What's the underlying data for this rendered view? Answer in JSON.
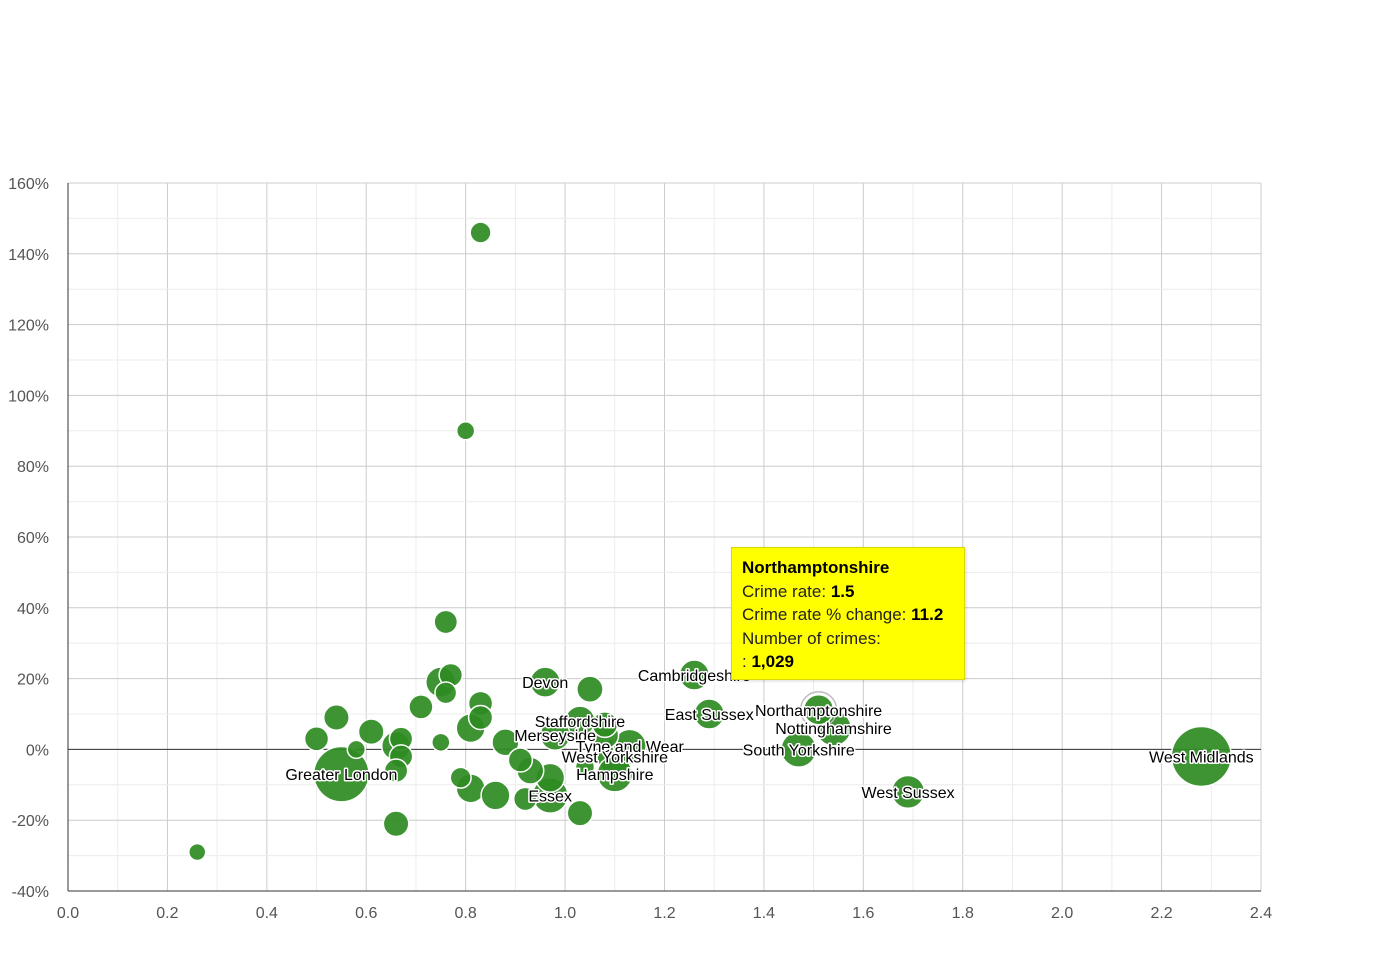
{
  "chart_data": {
    "type": "scatter",
    "subtype": "bubble",
    "title": "",
    "xlabel": "",
    "ylabel": "",
    "xlim": [
      0,
      2.4
    ],
    "ylim": [
      -40,
      160
    ],
    "x_ticks": [
      "0.0",
      "0.2",
      "0.4",
      "0.6",
      "0.8",
      "1.0",
      "1.2",
      "1.4",
      "1.6",
      "1.8",
      "2.0",
      "2.2",
      "2.4"
    ],
    "y_ticks": [
      "-40%",
      "-20%",
      "0%",
      "20%",
      "40%",
      "60%",
      "80%",
      "100%",
      "120%",
      "140%",
      "160%"
    ],
    "bubble_color": "#2e8b22",
    "points": [
      {
        "name": "West Midlands",
        "x": 2.28,
        "y": -2,
        "size": 10,
        "labeled": true
      },
      {
        "name": "Greater London",
        "x": 0.55,
        "y": -7,
        "size": 8.5,
        "labeled": true
      },
      {
        "name": "West Sussex",
        "x": 1.69,
        "y": -12,
        "size": 3,
        "labeled": true
      },
      {
        "name": "South Yorkshire",
        "x": 1.47,
        "y": 0,
        "size": 3.5,
        "labeled": true
      },
      {
        "name": "Nottinghamshire",
        "x": 1.54,
        "y": 6,
        "size": 3.5,
        "labeled": true
      },
      {
        "name": "Northamptonshire",
        "x": 1.51,
        "y": 11.2,
        "size": 2.5,
        "labeled": true,
        "highlighted": true
      },
      {
        "name": "East Sussex",
        "x": 1.29,
        "y": 10,
        "size": 2.5,
        "labeled": true
      },
      {
        "name": "Cambridgeshire",
        "x": 1.26,
        "y": 21,
        "size": 2.5,
        "labeled": true
      },
      {
        "name": "Devon",
        "x": 0.96,
        "y": 19,
        "size": 2.5,
        "labeled": true
      },
      {
        "name": "Staffordshire",
        "x": 1.03,
        "y": 8,
        "size": 2.5,
        "labeled": true
      },
      {
        "name": "Merseyside",
        "x": 0.98,
        "y": 4,
        "size": 2.5,
        "labeled": true
      },
      {
        "name": "Tyne and Wear",
        "x": 1.13,
        "y": 1,
        "size": 3,
        "labeled": true
      },
      {
        "name": "West Yorkshire",
        "x": 1.1,
        "y": -2,
        "size": 3.5,
        "labeled": true
      },
      {
        "name": "Hampshire",
        "x": 1.1,
        "y": -7,
        "size": 3.5,
        "labeled": true
      },
      {
        "name": "Essex",
        "x": 0.97,
        "y": -13,
        "size": 3.5,
        "labeled": true
      },
      {
        "name": "",
        "x": 0.83,
        "y": 146,
        "size": 1.2
      },
      {
        "name": "",
        "x": 0.8,
        "y": 90,
        "size": 0.9
      },
      {
        "name": "",
        "x": 0.76,
        "y": 36,
        "size": 1.5
      },
      {
        "name": "",
        "x": 0.75,
        "y": 19,
        "size": 2.5
      },
      {
        "name": "",
        "x": 0.77,
        "y": 21,
        "size": 1.5
      },
      {
        "name": "",
        "x": 0.76,
        "y": 16,
        "size": 1.3
      },
      {
        "name": "",
        "x": 0.71,
        "y": 12,
        "size": 1.6
      },
      {
        "name": "",
        "x": 0.83,
        "y": 13,
        "size": 1.6
      },
      {
        "name": "",
        "x": 0.83,
        "y": 9,
        "size": 1.6
      },
      {
        "name": "",
        "x": 0.81,
        "y": 6,
        "size": 2.3
      },
      {
        "name": "",
        "x": 0.54,
        "y": 9,
        "size": 1.8
      },
      {
        "name": "",
        "x": 0.61,
        "y": 5,
        "size": 1.8
      },
      {
        "name": "",
        "x": 0.5,
        "y": 3,
        "size": 1.6
      },
      {
        "name": "",
        "x": 0.58,
        "y": 0,
        "size": 0.9
      },
      {
        "name": "",
        "x": 0.66,
        "y": 1,
        "size": 2.3
      },
      {
        "name": "",
        "x": 0.67,
        "y": 3,
        "size": 1.5
      },
      {
        "name": "",
        "x": 0.67,
        "y": -2,
        "size": 1.5
      },
      {
        "name": "",
        "x": 0.66,
        "y": -6,
        "size": 1.5
      },
      {
        "name": "",
        "x": 0.75,
        "y": 2,
        "size": 0.9
      },
      {
        "name": "",
        "x": 0.66,
        "y": -21,
        "size": 1.8
      },
      {
        "name": "",
        "x": 0.79,
        "y": -8,
        "size": 1.2
      },
      {
        "name": "",
        "x": 0.81,
        "y": -11,
        "size": 2.3
      },
      {
        "name": "",
        "x": 0.86,
        "y": -13,
        "size": 2.3
      },
      {
        "name": "",
        "x": 0.88,
        "y": 2,
        "size": 2.0
      },
      {
        "name": "",
        "x": 0.91,
        "y": -3,
        "size": 1.6
      },
      {
        "name": "",
        "x": 0.93,
        "y": -6,
        "size": 2.0
      },
      {
        "name": "",
        "x": 0.92,
        "y": -14,
        "size": 1.5
      },
      {
        "name": "",
        "x": 0.97,
        "y": -8,
        "size": 2.3
      },
      {
        "name": "",
        "x": 1.03,
        "y": -18,
        "size": 1.8
      },
      {
        "name": "",
        "x": 1.05,
        "y": 17,
        "size": 1.9
      },
      {
        "name": "",
        "x": 1.08,
        "y": 4,
        "size": 2.1
      },
      {
        "name": "",
        "x": 1.08,
        "y": 7,
        "size": 1.8
      },
      {
        "name": "",
        "x": 1.04,
        "y": -5,
        "size": 1.0
      },
      {
        "name": "",
        "x": 0.26,
        "y": -29,
        "size": 0.8
      }
    ],
    "tooltip": {
      "title": "Northamptonshire",
      "rate_label": "Crime rate:",
      "rate_value": "1.5",
      "change_label": "Crime rate % change:",
      "change_value": "11.2",
      "count_label": "Number of crimes:",
      "count_prefix": ":",
      "count_value": "1,029"
    }
  }
}
